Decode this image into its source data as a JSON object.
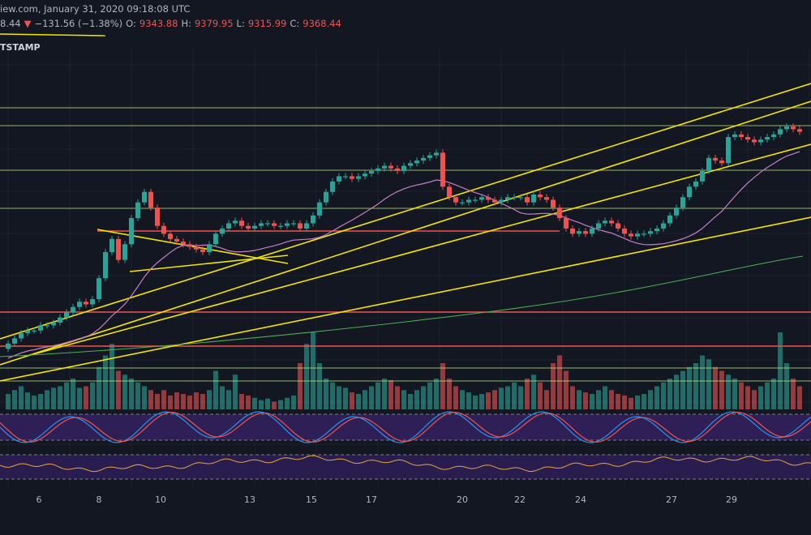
{
  "header": {
    "timestamp_line": "iew.com, January 31, 2020 09:18:08 UTC",
    "price_partial": "8.44",
    "down_arrow": "▼",
    "change": "−131.56 (−1.38%)",
    "o_label": "O:",
    "o_value": "9343.88",
    "h_label": "H:",
    "h_value": "9379.95",
    "l_label": "L:",
    "l_value": "9315.99",
    "c_label": "C:",
    "c_value": "9368.44",
    "exchange": "TSTAMP"
  },
  "colors": {
    "background": "#131722",
    "up": "#26a69a",
    "down": "#ef5350",
    "trendline": "#f5e400",
    "horizontal_green": "#b7e07a",
    "horizontal_red": "#ef5350",
    "ma_pink": "#c77dc9",
    "ma_green": "#4caf50",
    "oscillator_bg": "#2e1f57"
  },
  "chart_data": {
    "type": "candlestick",
    "x_tick_labels": [
      "6",
      "8",
      "10",
      "13",
      "15",
      "17",
      "20",
      "22",
      "24",
      "27",
      "29"
    ],
    "closes": [
      0.2,
      0.22,
      0.24,
      0.25,
      0.25,
      0.27,
      0.27,
      0.28,
      0.3,
      0.32,
      0.34,
      0.36,
      0.35,
      0.37,
      0.45,
      0.55,
      0.6,
      0.52,
      0.58,
      0.68,
      0.74,
      0.78,
      0.72,
      0.65,
      0.62,
      0.6,
      0.59,
      0.58,
      0.57,
      0.56,
      0.55,
      0.58,
      0.62,
      0.64,
      0.66,
      0.67,
      0.65,
      0.64,
      0.65,
      0.66,
      0.66,
      0.65,
      0.65,
      0.66,
      0.66,
      0.64,
      0.66,
      0.69,
      0.74,
      0.78,
      0.82,
      0.84,
      0.84,
      0.83,
      0.84,
      0.85,
      0.86,
      0.87,
      0.88,
      0.87,
      0.86,
      0.88,
      0.89,
      0.9,
      0.91,
      0.92,
      0.93,
      0.8,
      0.76,
      0.74,
      0.74,
      0.75,
      0.75,
      0.76,
      0.75,
      0.74,
      0.75,
      0.76,
      0.76,
      0.76,
      0.74,
      0.77,
      0.76,
      0.75,
      0.72,
      0.68,
      0.64,
      0.62,
      0.63,
      0.62,
      0.64,
      0.66,
      0.67,
      0.66,
      0.64,
      0.62,
      0.61,
      0.62,
      0.62,
      0.63,
      0.64,
      0.66,
      0.69,
      0.72,
      0.76,
      0.8,
      0.82,
      0.86,
      0.91,
      0.9,
      0.89,
      0.99,
      1.0,
      0.99,
      0.98,
      0.97,
      0.98,
      0.99,
      1.0,
      1.02,
      1.03,
      1.02,
      1.01
    ],
    "volumes": [
      0.2,
      0.25,
      0.3,
      0.22,
      0.18,
      0.2,
      0.25,
      0.28,
      0.3,
      0.35,
      0.4,
      0.28,
      0.3,
      0.35,
      0.55,
      0.7,
      0.85,
      0.5,
      0.45,
      0.4,
      0.35,
      0.3,
      0.25,
      0.2,
      0.25,
      0.18,
      0.22,
      0.2,
      0.18,
      0.22,
      0.2,
      0.25,
      0.5,
      0.3,
      0.25,
      0.45,
      0.2,
      0.18,
      0.15,
      0.12,
      0.14,
      0.1,
      0.12,
      0.15,
      0.18,
      0.6,
      0.85,
      1.0,
      0.6,
      0.4,
      0.35,
      0.3,
      0.28,
      0.22,
      0.2,
      0.25,
      0.3,
      0.35,
      0.4,
      0.38,
      0.3,
      0.25,
      0.2,
      0.25,
      0.3,
      0.35,
      0.4,
      0.6,
      0.4,
      0.3,
      0.25,
      0.22,
      0.18,
      0.2,
      0.22,
      0.25,
      0.28,
      0.3,
      0.35,
      0.3,
      0.4,
      0.45,
      0.35,
      0.25,
      0.6,
      0.7,
      0.5,
      0.3,
      0.25,
      0.22,
      0.2,
      0.25,
      0.3,
      0.25,
      0.2,
      0.18,
      0.15,
      0.18,
      0.2,
      0.25,
      0.3,
      0.35,
      0.4,
      0.45,
      0.5,
      0.55,
      0.6,
      0.7,
      0.65,
      0.55,
      0.5,
      0.45,
      0.4,
      0.35,
      0.3,
      0.25,
      0.3,
      0.35,
      0.4,
      1.0,
      0.6,
      0.4,
      0.3
    ],
    "stoch_k": [],
    "rsi": []
  }
}
